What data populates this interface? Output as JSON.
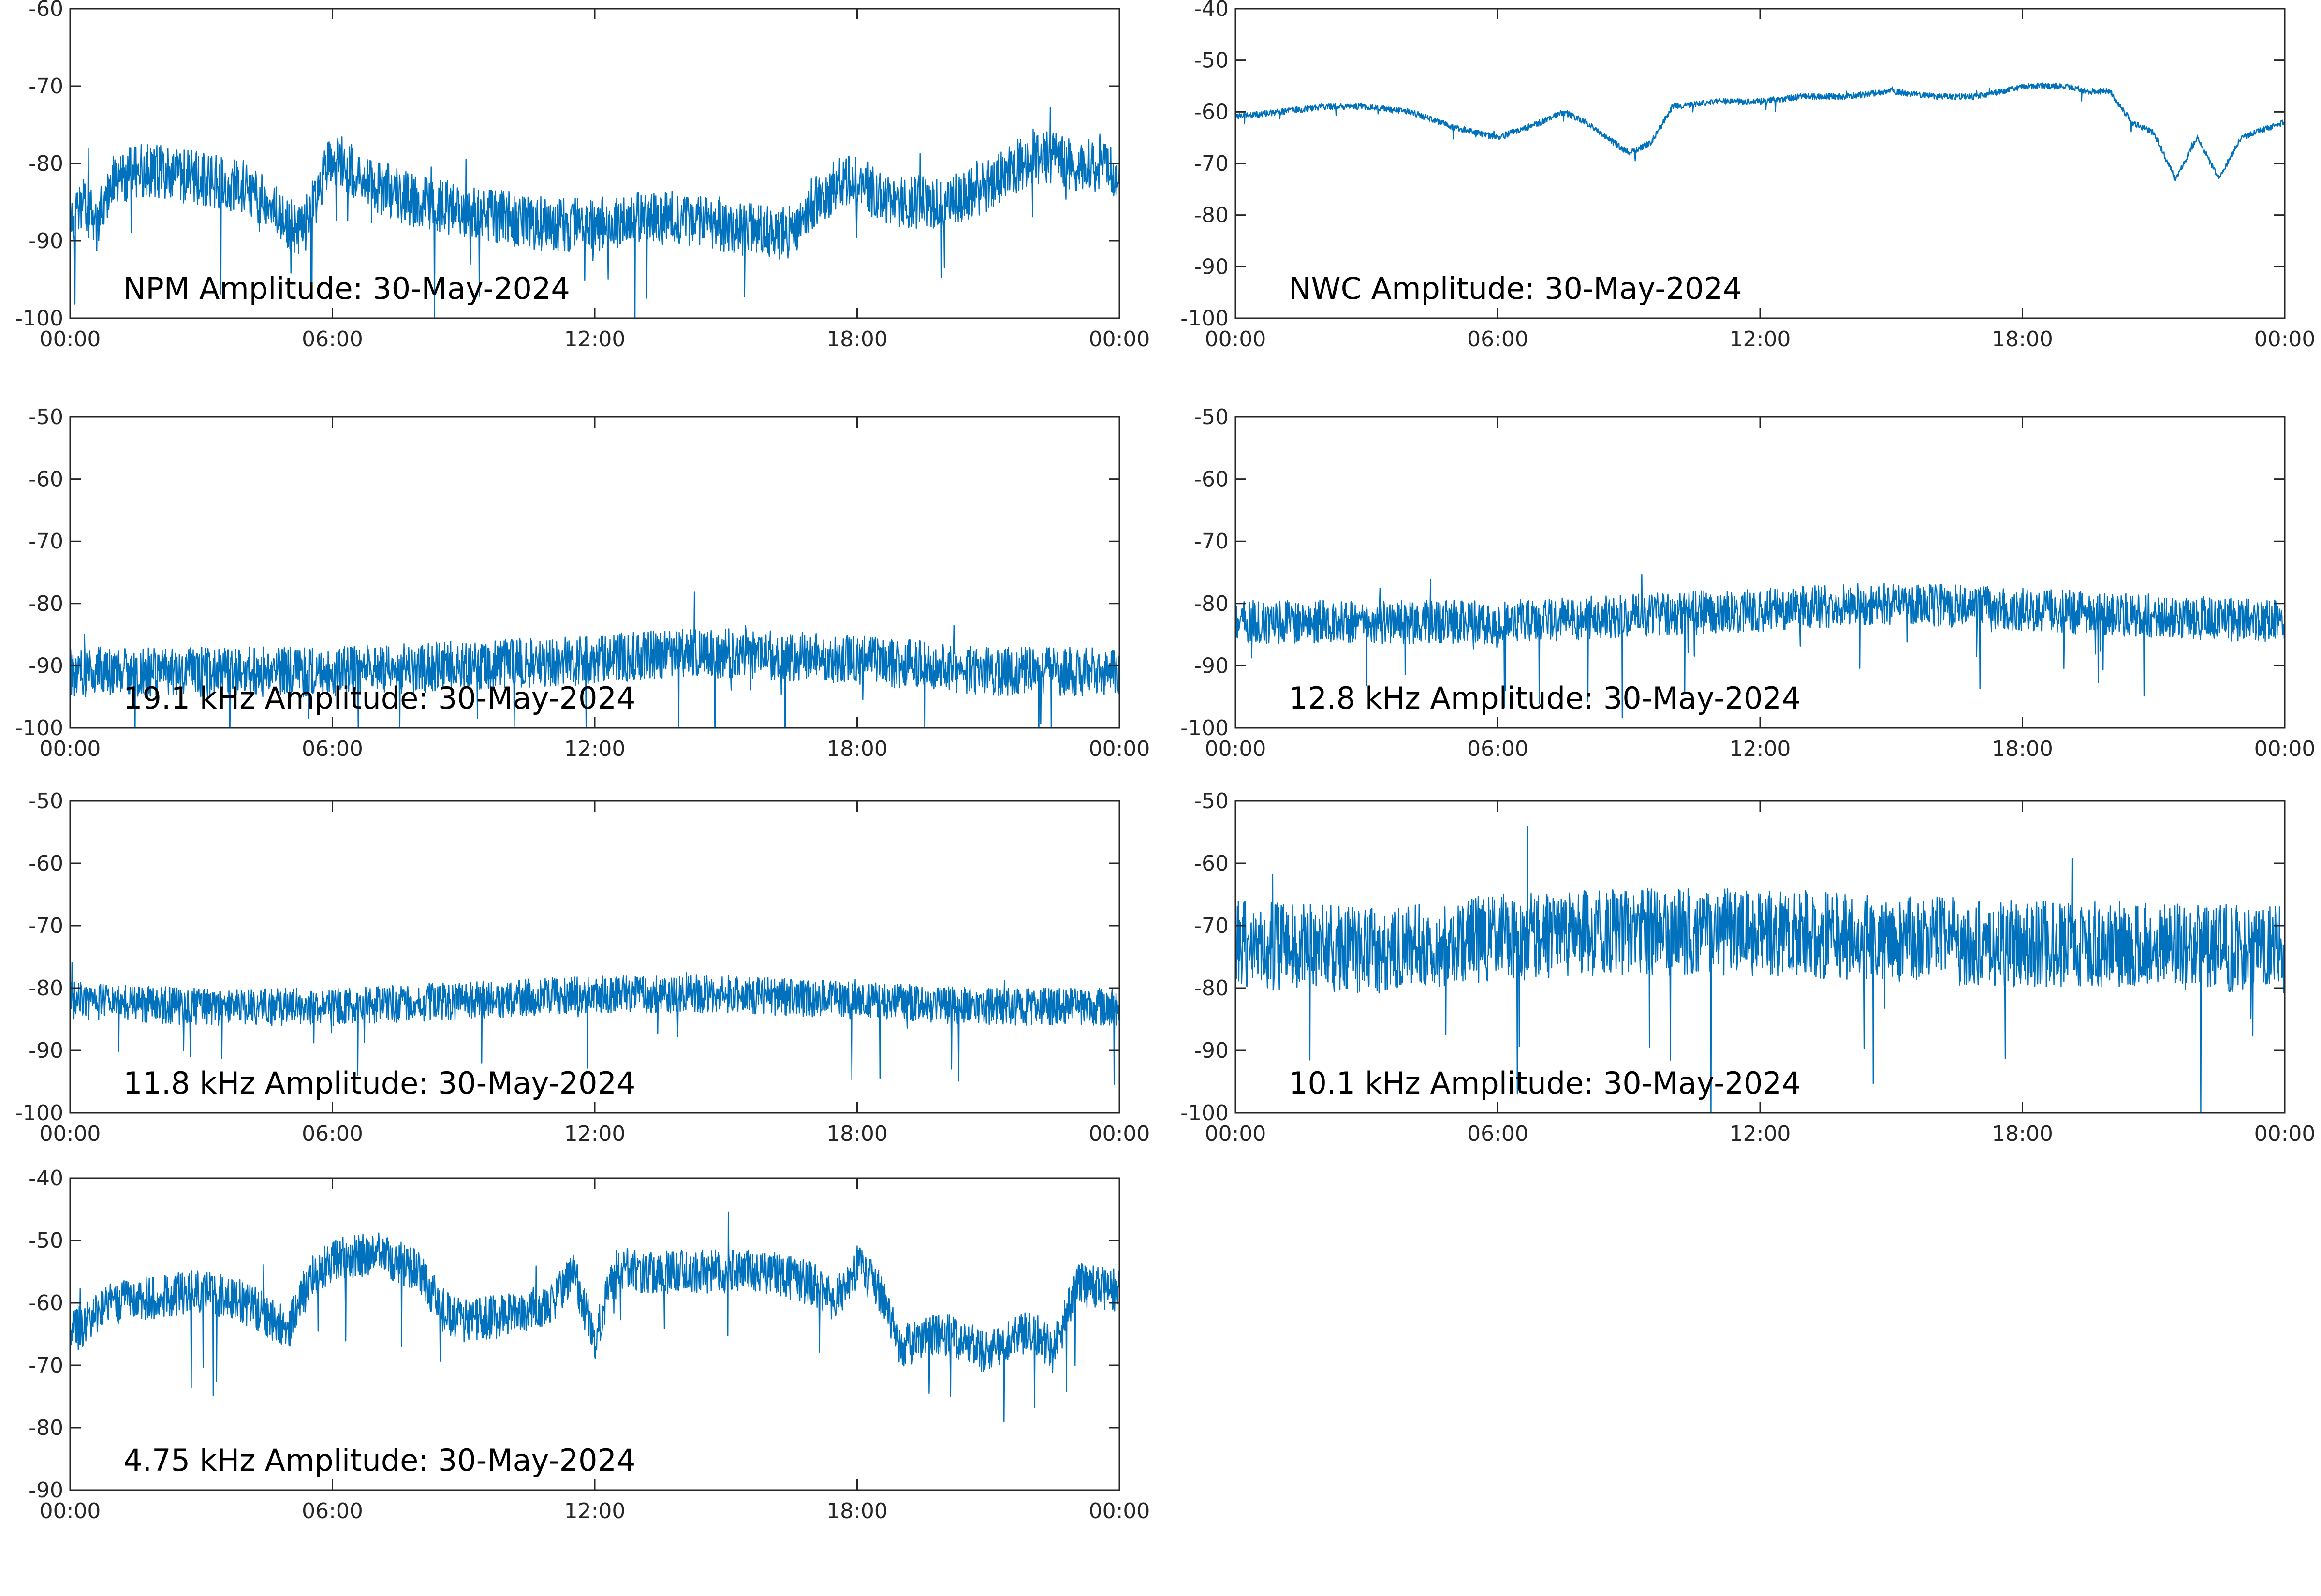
{
  "colors": {
    "trace": "#0072BD"
  },
  "chart_data": [
    {
      "type": "line",
      "title": "NPM Amplitude: 30-May-2024",
      "x_ticks": [
        "00:00",
        "06:00",
        "12:00",
        "18:00",
        "00:00"
      ],
      "xlim": [
        0,
        24
      ],
      "ylim": [
        -100,
        -60
      ],
      "y_ticks": [
        -60,
        -70,
        -80,
        -90,
        -100
      ],
      "series": [
        {
          "x": [
            0,
            0.3,
            0.6,
            1,
            1.5,
            2,
            3,
            4,
            4.5,
            5,
            5.3,
            5.6,
            6,
            7,
            8,
            9,
            10,
            11,
            12,
            13,
            14,
            15,
            16,
            16.5,
            17,
            17.5,
            18,
            18.5,
            19,
            20,
            21,
            21.5,
            22,
            23,
            24
          ],
          "y": [
            -89,
            -85,
            -88,
            -82,
            -81,
            -81,
            -82,
            -83,
            -85,
            -88,
            -89,
            -85,
            -79,
            -83,
            -85,
            -86,
            -87,
            -88,
            -88,
            -87,
            -87,
            -88,
            -89,
            -89,
            -85,
            -83,
            -82,
            -84,
            -85,
            -85,
            -83,
            -81,
            -79,
            -80,
            -81
          ],
          "noise": 3.5
        }
      ]
    },
    {
      "type": "line",
      "title": "NWC Amplitude: 30-May-2024",
      "x_ticks": [
        "00:00",
        "06:00",
        "12:00",
        "18:00",
        "00:00"
      ],
      "xlim": [
        0,
        24
      ],
      "ylim": [
        -100,
        -40
      ],
      "y_ticks": [
        -40,
        -50,
        -60,
        -70,
        -80,
        -90,
        -100
      ],
      "series": [
        {
          "x": [
            0,
            1,
            2,
            3,
            4,
            5,
            6,
            7,
            7.5,
            8,
            9,
            9.5,
            10,
            11,
            12,
            13,
            14,
            15,
            16,
            17,
            18,
            19,
            19.5,
            20,
            20.5,
            21,
            21.5,
            22,
            22.5,
            23,
            24
          ],
          "y": [
            -61,
            -60,
            -59,
            -59,
            -60,
            -63,
            -65,
            -62,
            -60,
            -62,
            -68,
            -66,
            -59,
            -58,
            -58,
            -57,
            -57,
            -56,
            -57,
            -57,
            -55,
            -55,
            -56,
            -56,
            -62,
            -64,
            -73,
            -65,
            -73,
            -65,
            -62
          ],
          "noise": 0.6
        }
      ]
    },
    {
      "type": "line",
      "title": "19.1 kHz Amplitude: 30-May-2024",
      "x_ticks": [
        "00:00",
        "06:00",
        "12:00",
        "18:00",
        "00:00"
      ],
      "xlim": [
        0,
        24
      ],
      "ylim": [
        -100,
        -50
      ],
      "y_ticks": [
        -50,
        -60,
        -70,
        -80,
        -90,
        -100
      ],
      "series": [
        {
          "x": [
            0,
            3,
            6,
            9,
            12,
            14,
            15,
            18,
            21,
            24
          ],
          "y": [
            -91,
            -91,
            -91,
            -90,
            -89,
            -88,
            -88,
            -89,
            -91,
            -91
          ],
          "noise": 4
        }
      ]
    },
    {
      "type": "line",
      "title": "12.8 kHz Amplitude: 30-May-2024",
      "x_ticks": [
        "00:00",
        "06:00",
        "12:00",
        "18:00",
        "00:00"
      ],
      "xlim": [
        0,
        24
      ],
      "ylim": [
        -100,
        -50
      ],
      "y_ticks": [
        -50,
        -60,
        -70,
        -80,
        -90,
        -100
      ],
      "series": [
        {
          "x": [
            0,
            3,
            6,
            9,
            12,
            15,
            18,
            21,
            24
          ],
          "y": [
            -83,
            -83,
            -83,
            -82,
            -81,
            -80,
            -81,
            -82,
            -83
          ],
          "noise": 3.5
        }
      ]
    },
    {
      "type": "line",
      "title": "11.8 kHz Amplitude: 30-May-2024",
      "x_ticks": [
        "00:00",
        "06:00",
        "12:00",
        "18:00",
        "00:00"
      ],
      "xlim": [
        0,
        24
      ],
      "ylim": [
        -100,
        -50
      ],
      "y_ticks": [
        -50,
        -60,
        -70,
        -80,
        -90,
        -100
      ],
      "series": [
        {
          "x": [
            0,
            3,
            6,
            9,
            12,
            15,
            18,
            21,
            24
          ],
          "y": [
            -82,
            -83,
            -83,
            -82,
            -81,
            -81,
            -82,
            -83,
            -83
          ],
          "noise": 3
        }
      ]
    },
    {
      "type": "line",
      "title": "10.1 kHz Amplitude: 30-May-2024",
      "x_ticks": [
        "00:00",
        "06:00",
        "12:00",
        "18:00",
        "00:00"
      ],
      "xlim": [
        0,
        24
      ],
      "ylim": [
        -100,
        -50
      ],
      "y_ticks": [
        -50,
        -60,
        -70,
        -80,
        -90,
        -100
      ],
      "series": [
        {
          "x": [
            0,
            3,
            6,
            9,
            12,
            15,
            18,
            21,
            24
          ],
          "y": [
            -73,
            -74,
            -72,
            -71,
            -71,
            -72,
            -73,
            -73,
            -74
          ],
          "noise": 7
        }
      ]
    },
    {
      "type": "line",
      "title": "4.75 kHz Amplitude: 30-May-2024",
      "x_ticks": [
        "00:00",
        "06:00",
        "12:00",
        "18:00",
        "00:00"
      ],
      "xlim": [
        0,
        24
      ],
      "ylim": [
        -90,
        -40
      ],
      "y_ticks": [
        -40,
        -50,
        -60,
        -70,
        -80,
        -90
      ],
      "series": [
        {
          "x": [
            0,
            1,
            2,
            3,
            4,
            5,
            5.5,
            6,
            7,
            8,
            8.5,
            9,
            10,
            11,
            11.5,
            12,
            12.5,
            13,
            14,
            15,
            16,
            17,
            17.5,
            18,
            18.5,
            19,
            20,
            21,
            22,
            22.5,
            23,
            24
          ],
          "y": [
            -65,
            -60,
            -59,
            -58,
            -60,
            -64,
            -56,
            -53,
            -52,
            -55,
            -61,
            -63,
            -62,
            -60,
            -55,
            -66,
            -54,
            -55,
            -55,
            -55,
            -55,
            -57,
            -60,
            -54,
            -58,
            -67,
            -65,
            -68,
            -64,
            -68,
            -57,
            -58
          ],
          "noise": 3.5
        }
      ]
    }
  ]
}
